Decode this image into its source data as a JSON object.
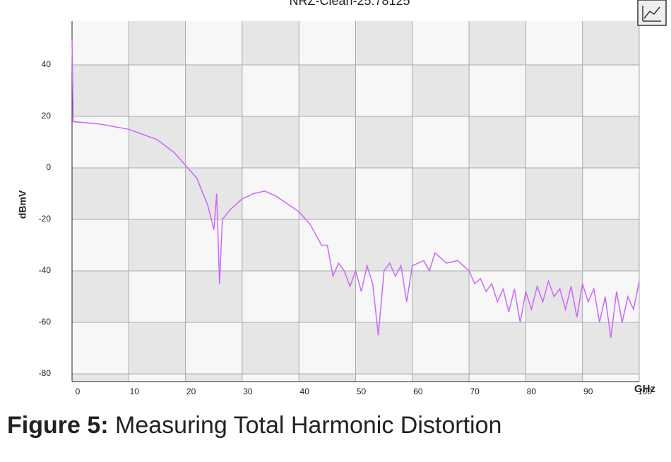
{
  "chart_data": {
    "type": "line",
    "title": "NRZ-Clean-25.78125",
    "x_label": "GHz",
    "y_label": "dBmV",
    "x": [
      0,
      0.2,
      5,
      10,
      15,
      18,
      20,
      22,
      24,
      25,
      25.5,
      26,
      26.5,
      28,
      30,
      32,
      34,
      36,
      38,
      40,
      42,
      44,
      45,
      46,
      47,
      48,
      49,
      50,
      51,
      52,
      53,
      54,
      55,
      56,
      57,
      58,
      59,
      60,
      62,
      63,
      64,
      65,
      66,
      68,
      70,
      71,
      72,
      73,
      74,
      75,
      76,
      77,
      78,
      79,
      80,
      81,
      82,
      83,
      84,
      85,
      86,
      87,
      88,
      89,
      90,
      91,
      92,
      93,
      94,
      95,
      96,
      97,
      98,
      99,
      100
    ],
    "series": [
      {
        "name": "NRZ-Clean-25.78125",
        "color": "#cc66ff",
        "values": [
          50,
          18,
          17,
          15,
          11,
          6,
          1,
          -4,
          -15,
          -24,
          -10,
          -45,
          -20,
          -16,
          -12,
          -10,
          -9,
          -11,
          -14,
          -17,
          -22,
          -30,
          -30,
          -42,
          -37,
          -40,
          -46,
          -40,
          -48,
          -38,
          -45,
          -65,
          -40,
          -37,
          -42,
          -38,
          -52,
          -38,
          -36,
          -40,
          -33,
          -35,
          -37,
          -36,
          -40,
          -45,
          -43,
          -48,
          -45,
          -52,
          -47,
          -56,
          -47,
          -60,
          -48,
          -55,
          -46,
          -52,
          -44,
          -50,
          -47,
          -55,
          -46,
          -58,
          -45,
          -52,
          -47,
          -60,
          -50,
          -66,
          -48,
          -60,
          -50,
          -55,
          -44
        ]
      }
    ],
    "xlim": [
      0,
      100
    ],
    "xticks": [
      0,
      10,
      20,
      30,
      40,
      50,
      60,
      70,
      80,
      90,
      100
    ],
    "ylim": [
      -83,
      57
    ],
    "yticks": [
      -80,
      -60,
      -40,
      -20,
      0,
      20,
      40
    ],
    "grid": true
  },
  "caption": {
    "label": "Figure 5:",
    "text": " Measuring Total Harmonic Distortion"
  }
}
